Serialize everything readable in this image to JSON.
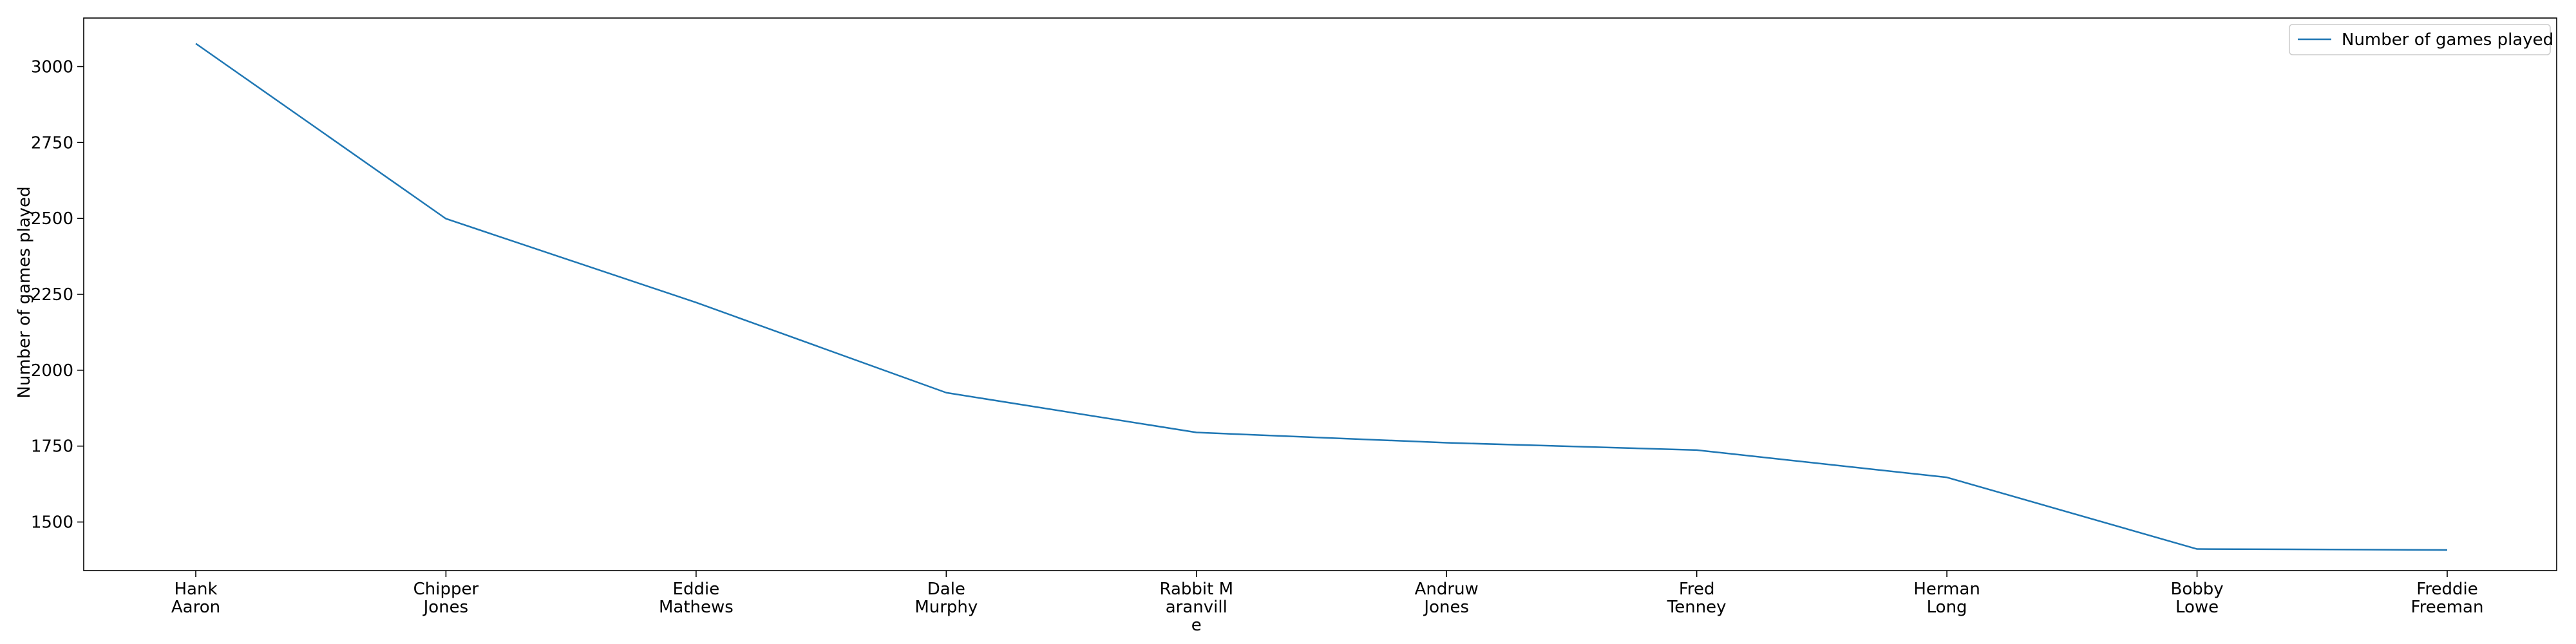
{
  "chart_data": {
    "type": "line",
    "categories": [
      "Hank\nAaron",
      "Chipper\nJones",
      "Eddie\nMathews",
      "Dale\nMurphy",
      "Rabbit M\naranvill\ne",
      "Andruw\nJones",
      "Fred\nTenney",
      "Herman\nLong",
      "Bobby\nLowe",
      "Freddie\nFreeman"
    ],
    "series": [
      {
        "name": "Number of games played",
        "values": [
          3076,
          2499,
          2223,
          1926,
          1795,
          1761,
          1737,
          1647,
          1411,
          1408
        ],
        "color": "#1f77b4"
      }
    ],
    "title": "",
    "xlabel": "",
    "ylabel": "Number of games played",
    "ylim": [
      1340,
      3160
    ],
    "yticks": [
      1500,
      1750,
      2000,
      2250,
      2500,
      2750,
      3000
    ],
    "ytick_labels": [
      "1500",
      "1750",
      "2000",
      "2250",
      "2500",
      "2750",
      "3000"
    ],
    "grid": false,
    "legend_position": "top-right"
  }
}
